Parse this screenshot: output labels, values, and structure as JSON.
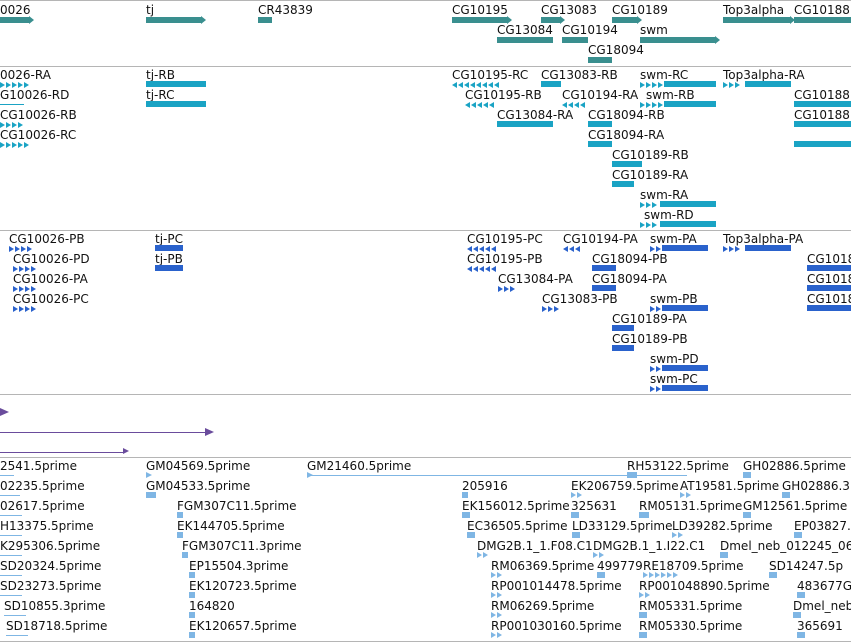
{
  "colors": {
    "gene": "#3a8f8f",
    "transcript": "#1aa3c4",
    "protein": "#2a62cc",
    "purple": "#6a4c9c",
    "est": "#7fb6e4"
  },
  "genes": [
    {
      "label": "0026"
    },
    {
      "label": "tj"
    },
    {
      "label": "CR43839"
    },
    {
      "label": "CG10195"
    },
    {
      "label": "CG13083"
    },
    {
      "label": "CG10189"
    },
    {
      "label": "Top3alpha"
    },
    {
      "label": "CG10188"
    },
    {
      "label": "CG13084"
    },
    {
      "label": "CG10194"
    },
    {
      "label": "swm"
    },
    {
      "label": "CG18094"
    }
  ],
  "transcripts": [
    {
      "label": "0026-RA"
    },
    {
      "label": "tj-RB"
    },
    {
      "label": "CG10195-RC"
    },
    {
      "label": "CG13083-RB"
    },
    {
      "label": "swm-RC"
    },
    {
      "label": "Top3alpha-RA"
    },
    {
      "label": "G10026-RD"
    },
    {
      "label": "tj-RC"
    },
    {
      "label": "CG10195-RB"
    },
    {
      "label": "CG10194-RA"
    },
    {
      "label": "swm-RB"
    },
    {
      "label": "CG10188"
    },
    {
      "label": "CG10026-RB"
    },
    {
      "label": "CG13084-RA"
    },
    {
      "label": "CG18094-RB"
    },
    {
      "label": "CG10188"
    },
    {
      "label": "CG10026-RC"
    },
    {
      "label": "CG18094-RA"
    },
    {
      "label": "CG10189-RB"
    },
    {
      "label": "CG10189-RA"
    },
    {
      "label": "swm-RA"
    },
    {
      "label": "swm-RD"
    }
  ],
  "proteins": [
    {
      "label": "CG10026-PB"
    },
    {
      "label": "tj-PC"
    },
    {
      "label": "CG10195-PC"
    },
    {
      "label": "CG10194-PA"
    },
    {
      "label": "swm-PA"
    },
    {
      "label": "Top3alpha-PA"
    },
    {
      "label": "CG1018"
    },
    {
      "label": "CG10026-PD"
    },
    {
      "label": "tj-PB"
    },
    {
      "label": "CG10195-PB"
    },
    {
      "label": "CG18094-PB"
    },
    {
      "label": "CG10026-PA"
    },
    {
      "label": "CG13084-PA"
    },
    {
      "label": "CG18094-PA"
    },
    {
      "label": "CG1018"
    },
    {
      "label": "CG10026-PC"
    },
    {
      "label": "CG13083-PB"
    },
    {
      "label": "swm-PB"
    },
    {
      "label": "CG1018"
    },
    {
      "label": "CG10189-PA"
    },
    {
      "label": "CG10189-PB"
    },
    {
      "label": "swm-PD"
    },
    {
      "label": "swm-PC"
    }
  ],
  "ests": [
    {
      "label": "2541.5prime"
    },
    {
      "label": "GM04569.5prime"
    },
    {
      "label": "GM21460.5prime"
    },
    {
      "label": "RH53122.5prime"
    },
    {
      "label": "GH02886.5prime"
    },
    {
      "label": "02235.5prime"
    },
    {
      "label": "GM04533.5prime"
    },
    {
      "label": "205916"
    },
    {
      "label": "EK206759.5prime"
    },
    {
      "label": "AT19581.5prime"
    },
    {
      "label": "GH02886.3"
    },
    {
      "label": "02617.5prime"
    },
    {
      "label": "FGM307C11.5prime"
    },
    {
      "label": "EK156012.5prime"
    },
    {
      "label": "325631"
    },
    {
      "label": "RM05131.5prime"
    },
    {
      "label": "GM12561.5prime"
    },
    {
      "label": "H13375.5prime"
    },
    {
      "label": "EK144705.5prime"
    },
    {
      "label": "EC36505.5prime"
    },
    {
      "label": "LD33129.5prime"
    },
    {
      "label": "LD39282.5prime"
    },
    {
      "label": "EP03827."
    },
    {
      "label": "K295306.5prime"
    },
    {
      "label": "FGM307C11.3prime"
    },
    {
      "label": "DMG2B.1_1.F08.C1"
    },
    {
      "label": "DMG2B.1_1.I22.C1"
    },
    {
      "label": "Dmel_neb_012245_06"
    },
    {
      "label": "SD20324.5prime"
    },
    {
      "label": "EP15504.3prime"
    },
    {
      "label": "RM06369.5prime"
    },
    {
      "label": "499779"
    },
    {
      "label": "RE18709.5prime"
    },
    {
      "label": "SD14247.5p"
    },
    {
      "label": "SD23273.5prime"
    },
    {
      "label": "EK120723.5prime"
    },
    {
      "label": "RP001014478.5prime"
    },
    {
      "label": "RP001048890.5prime"
    },
    {
      "label": "483677G"
    },
    {
      "label": "SD10855.3prime"
    },
    {
      "label": "164820"
    },
    {
      "label": "RM06269.5prime"
    },
    {
      "label": "RM05331.5prime"
    },
    {
      "label": "Dmel_neb_"
    },
    {
      "label": "SD18718.5prime"
    },
    {
      "label": "EK120657.5prime"
    },
    {
      "label": "RP001030160.5prime"
    },
    {
      "label": "RM05330.5prime"
    },
    {
      "label": "365691"
    }
  ]
}
